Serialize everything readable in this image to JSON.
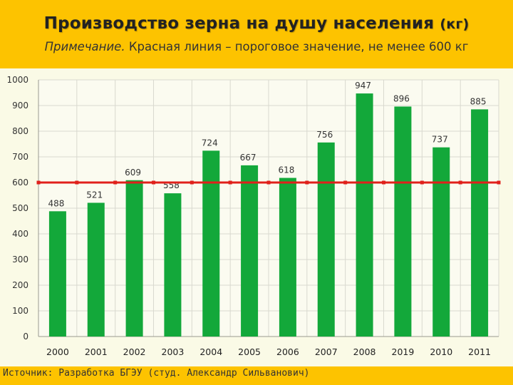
{
  "title": {
    "main": "Производство зерна на душу населения",
    "unit": "(кг)"
  },
  "note": {
    "label": "Примечание.",
    "text": "Красная линия – пороговое значение, не менее 600 кг"
  },
  "source": "Источник: Разработка БГЭУ (студ. Александр Сильванович)",
  "colors": {
    "bar": "#13a83a",
    "threshold": "#e0201b",
    "background": "#fdc300",
    "plot_background": "#fafae6",
    "grid": "#d9d9cf"
  },
  "chart_data": {
    "type": "bar",
    "categories": [
      "2000",
      "2001",
      "2002",
      "2003",
      "2004",
      "2005",
      "2006",
      "2007",
      "2008",
      "2019",
      "2010",
      "2011"
    ],
    "values": [
      488,
      521,
      609,
      558,
      724,
      667,
      618,
      756,
      947,
      896,
      737,
      885
    ],
    "data_labels": [
      "488",
      "521",
      "609",
      "558",
      "724",
      "667",
      "618",
      "756",
      "947",
      "896",
      "737",
      "885"
    ],
    "ylim": [
      0,
      1000
    ],
    "yticks": [
      "0",
      "100",
      "200",
      "300",
      "400",
      "500",
      "600",
      "700",
      "800",
      "900",
      "1000"
    ],
    "threshold": 600,
    "grid": true,
    "xlabel": "",
    "ylabel": ""
  }
}
